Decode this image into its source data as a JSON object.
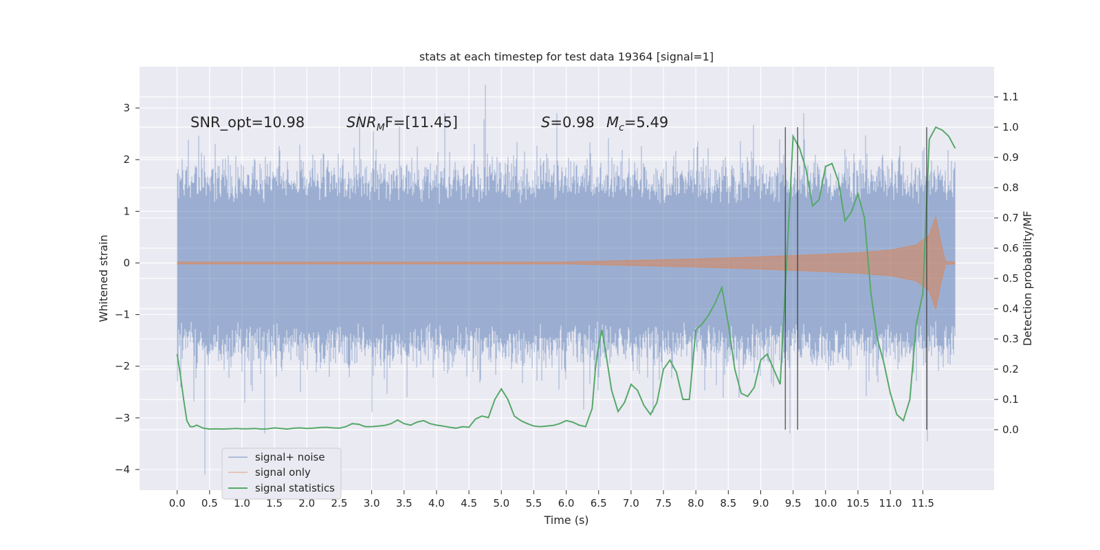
{
  "chart_data": {
    "type": "line",
    "title": "stats at each timestep for test data 19364 [signal=1]",
    "xlabel": "Time (s)",
    "ylabel": "Whitened strain",
    "ylabel_right": "Detection probability/MF",
    "xlim": [
      -0.58,
      12.6
    ],
    "ylim": [
      -4.4,
      3.8
    ],
    "ylim_right": [
      -0.2,
      1.2
    ],
    "x_ticks": [
      0.0,
      0.5,
      1.0,
      1.5,
      2.0,
      2.5,
      3.0,
      3.5,
      4.0,
      4.5,
      5.0,
      5.5,
      6.0,
      6.5,
      7.0,
      7.5,
      8.0,
      8.5,
      9.0,
      9.5,
      10.0,
      10.5,
      11.0,
      11.5
    ],
    "x_tick_labels": [
      "0.0",
      "0.5",
      "1.0",
      "1.5",
      "2.0",
      "2.5",
      "3.0",
      "3.5",
      "4.0",
      "4.5",
      "5.0",
      "5.5",
      "6.0",
      "6.5",
      "7.0",
      "7.5",
      "8.0",
      "8.5",
      "9.0",
      "9.5",
      "10.0",
      "10.5",
      "11.0",
      "11.5"
    ],
    "y_ticks": [
      -4,
      -3,
      -2,
      -1,
      0,
      1,
      2,
      3
    ],
    "y_tick_labels": [
      "−4",
      "−3",
      "−2",
      "−1",
      "0",
      "1",
      "2",
      "3"
    ],
    "y_ticks_right": [
      0.0,
      0.1,
      0.2,
      0.3,
      0.4,
      0.5,
      0.6,
      0.7,
      0.8,
      0.9,
      1.0,
      1.1
    ],
    "y_tick_labels_right": [
      "0.0",
      "0.1",
      "0.2",
      "0.3",
      "0.4",
      "0.5",
      "0.6",
      "0.7",
      "0.8",
      "0.9",
      "1.0",
      "1.1"
    ],
    "grid": true,
    "legend_position": "lower-left",
    "annotations": {
      "snr_opt": "SNR_opt=10.98",
      "snr_mf_label": "SNR",
      "snr_mf_sub": "M",
      "snr_mf_value": "F=[11.45]",
      "s_label": "S",
      "s_value": "=0.98",
      "mc_label": "M",
      "mc_sub": "c",
      "mc_value": "=5.49"
    },
    "series": [
      {
        "name": "signal+ noise",
        "color": "#4c72b0",
        "axis": "left",
        "kind": "noisy_strain",
        "x_range": [
          0.0,
          12.0
        ],
        "typical_range": [
          -1.5,
          1.5
        ],
        "peak_max": 3.45,
        "peak_min": -4.1
      },
      {
        "name": "signal only",
        "color": "#dd8452",
        "axis": "left",
        "kind": "chirp",
        "x_range": [
          0.0,
          12.0
        ],
        "envelope": {
          "x": [
            0.0,
            6.0,
            7.0,
            8.0,
            9.0,
            10.0,
            10.5,
            11.0,
            11.4,
            11.6,
            11.7,
            11.78,
            11.85,
            12.0
          ],
          "amp": [
            0.02,
            0.02,
            0.05,
            0.08,
            0.12,
            0.17,
            0.2,
            0.25,
            0.35,
            0.55,
            0.9,
            0.4,
            0.03,
            0.02
          ]
        }
      },
      {
        "name": "signal statistics",
        "color": "#55a868",
        "axis": "right",
        "x": [
          0.0,
          0.05,
          0.1,
          0.15,
          0.2,
          0.25,
          0.3,
          0.4,
          0.5,
          0.6,
          0.7,
          0.8,
          0.9,
          1.0,
          1.1,
          1.2,
          1.3,
          1.4,
          1.5,
          1.6,
          1.7,
          1.8,
          1.9,
          2.0,
          2.1,
          2.2,
          2.3,
          2.4,
          2.5,
          2.6,
          2.7,
          2.8,
          2.9,
          3.0,
          3.1,
          3.2,
          3.3,
          3.4,
          3.5,
          3.6,
          3.7,
          3.8,
          3.9,
          4.0,
          4.1,
          4.2,
          4.3,
          4.4,
          4.5,
          4.6,
          4.7,
          4.8,
          4.9,
          5.0,
          5.1,
          5.2,
          5.3,
          5.4,
          5.5,
          5.6,
          5.7,
          5.8,
          5.9,
          6.0,
          6.1,
          6.2,
          6.3,
          6.4,
          6.45,
          6.5,
          6.55,
          6.6,
          6.7,
          6.8,
          6.9,
          7.0,
          7.1,
          7.2,
          7.3,
          7.4,
          7.5,
          7.6,
          7.7,
          7.8,
          7.9,
          8.0,
          8.1,
          8.2,
          8.3,
          8.4,
          8.5,
          8.6,
          8.7,
          8.8,
          8.9,
          9.0,
          9.1,
          9.2,
          9.3,
          9.4,
          9.5,
          9.6,
          9.7,
          9.8,
          9.9,
          10.0,
          10.1,
          10.2,
          10.3,
          10.4,
          10.5,
          10.6,
          10.7,
          10.8,
          10.9,
          11.0,
          11.1,
          11.2,
          11.3,
          11.4,
          11.5,
          11.6,
          11.7,
          11.8,
          11.9,
          12.0
        ],
        "values": [
          0.25,
          0.18,
          0.1,
          0.03,
          0.01,
          0.01,
          0.015,
          0.005,
          0.002,
          0.003,
          0.002,
          0.003,
          0.004,
          0.003,
          0.003,
          0.004,
          0.002,
          0.003,
          0.006,
          0.004,
          0.002,
          0.005,
          0.006,
          0.004,
          0.005,
          0.007,
          0.008,
          0.006,
          0.005,
          0.01,
          0.02,
          0.018,
          0.01,
          0.01,
          0.012,
          0.014,
          0.02,
          0.032,
          0.02,
          0.015,
          0.025,
          0.03,
          0.02,
          0.015,
          0.012,
          0.008,
          0.005,
          0.01,
          0.008,
          0.035,
          0.045,
          0.04,
          0.1,
          0.135,
          0.1,
          0.045,
          0.03,
          0.02,
          0.012,
          0.01,
          0.012,
          0.014,
          0.02,
          0.03,
          0.025,
          0.015,
          0.01,
          0.07,
          0.2,
          0.28,
          0.33,
          0.27,
          0.13,
          0.06,
          0.09,
          0.15,
          0.13,
          0.08,
          0.05,
          0.09,
          0.2,
          0.23,
          0.19,
          0.1,
          0.1,
          0.33,
          0.35,
          0.38,
          0.42,
          0.47,
          0.35,
          0.2,
          0.12,
          0.11,
          0.14,
          0.23,
          0.25,
          0.2,
          0.15,
          0.55,
          0.97,
          0.93,
          0.86,
          0.74,
          0.76,
          0.87,
          0.88,
          0.82,
          0.69,
          0.72,
          0.78,
          0.7,
          0.45,
          0.3,
          0.22,
          0.12,
          0.05,
          0.03,
          0.1,
          0.35,
          0.45,
          0.96,
          1.0,
          0.99,
          0.97,
          0.93
        ],
        "vlines": [
          9.38,
          9.57,
          11.56
        ]
      }
    ]
  }
}
